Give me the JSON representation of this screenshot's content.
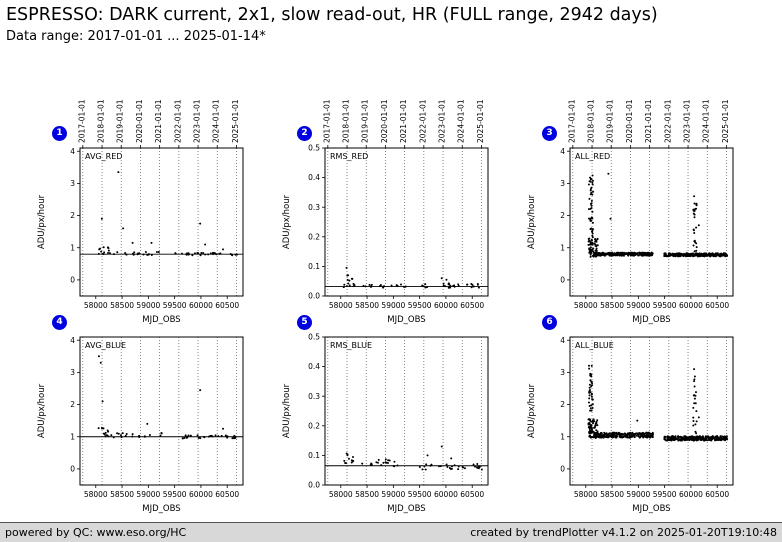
{
  "header": {
    "title": "ESPRESSO: DARK current, 2x1, slow read-out, HR (FULL range, 2942 days)",
    "subtitle": "Data range: 2017-01-01 ... 2025-01-14*"
  },
  "footer": {
    "left": "powered by QC: www.eso.org/HC",
    "right": "created by trendPlotter v4.1.2 on 2025-01-20T19:10:48"
  },
  "colors": {
    "badge": "#0000e0",
    "points": "#000000",
    "grid": "#555555",
    "refline": "#000000",
    "axis": "#000000"
  },
  "axes_common": {
    "xlim": [
      57700,
      60800
    ],
    "xlabel": "MJD_OBS",
    "ylabel": "ADU/px/hour",
    "xticks": [
      {
        "v": 58000,
        "l": "58000"
      },
      {
        "v": 58500,
        "l": "58500"
      },
      {
        "v": 59000,
        "l": "59000"
      },
      {
        "v": 59500,
        "l": "59500"
      },
      {
        "v": 60000,
        "l": "60000"
      },
      {
        "v": 60500,
        "l": "60500"
      }
    ],
    "date_ticks": [
      {
        "mjd": 57754,
        "l": "2017-01-01"
      },
      {
        "mjd": 58119,
        "l": "2018-01-01"
      },
      {
        "mjd": 58484,
        "l": "2019-01-01"
      },
      {
        "mjd": 58849,
        "l": "2020-01-01"
      },
      {
        "mjd": 59215,
        "l": "2021-01-01"
      },
      {
        "mjd": 59580,
        "l": "2022-01-01"
      },
      {
        "mjd": 59945,
        "l": "2023-01-01"
      },
      {
        "mjd": 60310,
        "l": "2024-01-01"
      },
      {
        "mjd": 60676,
        "l": "2025-01-01"
      }
    ]
  },
  "chart_data": [
    {
      "type": "scatter",
      "badge": "1",
      "label": "AVG_RED",
      "row": 0,
      "col": 0,
      "ylim": [
        -0.5,
        4.1
      ],
      "yticks": [
        {
          "v": 0,
          "l": "0"
        },
        {
          "v": 1,
          "l": "1"
        },
        {
          "v": 2,
          "l": "2"
        },
        {
          "v": 3,
          "l": "3"
        },
        {
          "v": 4,
          "l": "4"
        }
      ],
      "refline": 0.8,
      "clusters": [
        {
          "x0": 58050,
          "x1": 58250,
          "n": 12,
          "y": 0.9,
          "dy": 0.12
        },
        {
          "x0": 58250,
          "x1": 59280,
          "n": 20,
          "y": 0.82,
          "dy": 0.05
        },
        {
          "x0": 59490,
          "x1": 60690,
          "n": 30,
          "y": 0.8,
          "dy": 0.04
        }
      ],
      "outliers": [
        [
          58115,
          1.9
        ],
        [
          58430,
          3.35
        ],
        [
          58520,
          1.6
        ],
        [
          58700,
          1.15
        ],
        [
          59060,
          1.15
        ],
        [
          59985,
          1.75
        ],
        [
          60080,
          1.1
        ],
        [
          60420,
          0.95
        ]
      ]
    },
    {
      "type": "scatter",
      "badge": "2",
      "label": "RMS_RED",
      "row": 0,
      "col": 1,
      "ylim": [
        0,
        0.5
      ],
      "yticks": [
        {
          "v": 0,
          "l": "0.0"
        },
        {
          "v": 0.1,
          "l": "0.1"
        },
        {
          "v": 0.2,
          "l": "0.2"
        },
        {
          "v": 0.3,
          "l": "0.3"
        },
        {
          "v": 0.4,
          "l": "0.4"
        },
        {
          "v": 0.5,
          "l": "0.5"
        }
      ],
      "refline": 0.032,
      "clusters": [
        {
          "x0": 58050,
          "x1": 58250,
          "n": 12,
          "y": 0.05,
          "dy": 0.02
        },
        {
          "x0": 58250,
          "x1": 59280,
          "n": 20,
          "y": 0.033,
          "dy": 0.006
        },
        {
          "x0": 59490,
          "x1": 60690,
          "n": 30,
          "y": 0.035,
          "dy": 0.008
        }
      ],
      "outliers": [
        [
          58110,
          0.095
        ],
        [
          58140,
          0.07
        ],
        [
          59920,
          0.06
        ],
        [
          60010,
          0.055
        ]
      ]
    },
    {
      "type": "scatter",
      "badge": "3",
      "label": "ALL_RED",
      "row": 0,
      "col": 2,
      "ylim": [
        -0.5,
        4.1
      ],
      "yticks": [
        {
          "v": 0,
          "l": "0"
        },
        {
          "v": 1,
          "l": "1"
        },
        {
          "v": 2,
          "l": "2"
        },
        {
          "v": 3,
          "l": "3"
        },
        {
          "v": 4,
          "l": "4"
        }
      ],
      "refline": null,
      "clusters": [
        {
          "x0": 58060,
          "x1": 58140,
          "n": 55,
          "y": 2.0,
          "dy": 1.25
        },
        {
          "x0": 58050,
          "x1": 58230,
          "n": 60,
          "y": 1.0,
          "dy": 0.3
        },
        {
          "x0": 58150,
          "x1": 59280,
          "n": 270,
          "y": 0.8,
          "dy": 0.05
        },
        {
          "x0": 59490,
          "x1": 60690,
          "n": 300,
          "y": 0.78,
          "dy": 0.05
        },
        {
          "x0": 60040,
          "x1": 60110,
          "n": 26,
          "y": 1.6,
          "dy": 0.85
        }
      ],
      "outliers": [
        [
          58430,
          3.3
        ],
        [
          58470,
          1.9
        ],
        [
          60150,
          1.7
        ],
        [
          60060,
          2.6
        ]
      ]
    },
    {
      "type": "scatter",
      "badge": "4",
      "label": "AVG_BLUE",
      "row": 1,
      "col": 0,
      "ylim": [
        -0.5,
        4.1
      ],
      "yticks": [
        {
          "v": 0,
          "l": "0"
        },
        {
          "v": 1,
          "l": "1"
        },
        {
          "v": 2,
          "l": "2"
        },
        {
          "v": 3,
          "l": "3"
        },
        {
          "v": 4,
          "l": "4"
        }
      ],
      "refline": 1.0,
      "clusters": [
        {
          "x0": 58050,
          "x1": 58250,
          "n": 12,
          "y": 1.15,
          "dy": 0.15
        },
        {
          "x0": 58250,
          "x1": 59280,
          "n": 20,
          "y": 1.05,
          "dy": 0.07
        },
        {
          "x0": 59490,
          "x1": 60690,
          "n": 30,
          "y": 1.0,
          "dy": 0.05
        }
      ],
      "outliers": [
        [
          58060,
          3.5
        ],
        [
          58095,
          3.3
        ],
        [
          58130,
          2.1
        ],
        [
          58980,
          1.4
        ],
        [
          59985,
          2.45
        ],
        [
          60420,
          1.25
        ]
      ]
    },
    {
      "type": "scatter",
      "badge": "5",
      "label": "RMS_BLUE",
      "row": 1,
      "col": 1,
      "ylim": [
        0,
        0.5
      ],
      "yticks": [
        {
          "v": 0,
          "l": "0.0"
        },
        {
          "v": 0.1,
          "l": "0.1"
        },
        {
          "v": 0.2,
          "l": "0.2"
        },
        {
          "v": 0.3,
          "l": "0.3"
        },
        {
          "v": 0.4,
          "l": "0.4"
        },
        {
          "v": 0.5,
          "l": "0.5"
        }
      ],
      "refline": 0.065,
      "clusters": [
        {
          "x0": 58050,
          "x1": 58250,
          "n": 12,
          "y": 0.09,
          "dy": 0.018
        },
        {
          "x0": 58250,
          "x1": 59280,
          "n": 20,
          "y": 0.075,
          "dy": 0.012
        },
        {
          "x0": 59490,
          "x1": 60690,
          "n": 30,
          "y": 0.062,
          "dy": 0.01
        }
      ],
      "outliers": [
        [
          59920,
          0.13
        ],
        [
          59650,
          0.1
        ],
        [
          60100,
          0.09
        ]
      ]
    },
    {
      "type": "scatter",
      "badge": "6",
      "label": "ALL_BLUE",
      "row": 1,
      "col": 2,
      "ylim": [
        -0.5,
        4.1
      ],
      "yticks": [
        {
          "v": 0,
          "l": "0"
        },
        {
          "v": 1,
          "l": "1"
        },
        {
          "v": 2,
          "l": "2"
        },
        {
          "v": 3,
          "l": "3"
        },
        {
          "v": 4,
          "l": "4"
        }
      ],
      "refline": null,
      "clusters": [
        {
          "x0": 58060,
          "x1": 58140,
          "n": 50,
          "y": 2.1,
          "dy": 1.2
        },
        {
          "x0": 58050,
          "x1": 58230,
          "n": 60,
          "y": 1.25,
          "dy": 0.3
        },
        {
          "x0": 58150,
          "x1": 59280,
          "n": 270,
          "y": 1.05,
          "dy": 0.08
        },
        {
          "x0": 59490,
          "x1": 60690,
          "n": 300,
          "y": 0.95,
          "dy": 0.07
        },
        {
          "x0": 60040,
          "x1": 60110,
          "n": 26,
          "y": 1.9,
          "dy": 1.1
        }
      ],
      "outliers": [
        [
          60060,
          3.1
        ],
        [
          58980,
          1.5
        ],
        [
          60150,
          1.6
        ]
      ]
    }
  ]
}
